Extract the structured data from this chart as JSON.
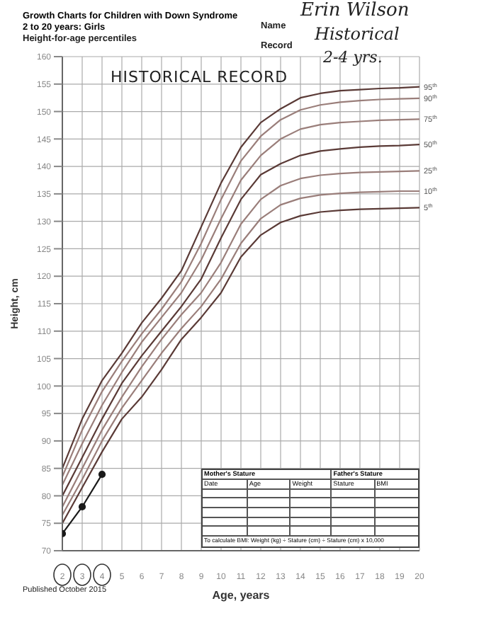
{
  "chart_data": {
    "type": "line",
    "title": "Growth Charts for Children with Down Syndrome",
    "subtitle": "2 to 20 years: Girls",
    "xlabel": "Age, years",
    "ylabel": "Height, cm",
    "annotations": [
      "Height-for-age percentiles",
      "Name",
      "Erin Wilson",
      "Record",
      "Historical",
      "2-4 yrs.",
      "HISTORICAL RECORD",
      "Published October 2015",
      "Mother's Stature",
      "Date",
      "Age",
      "Weight",
      "Father's Stature",
      "Stature",
      "BMI",
      "To calculate BMI: Weight (kg) ÷ Stature (cm) ÷ Stature (cm) x 10,000"
    ],
    "x": [
      2,
      3,
      4,
      5,
      6,
      7,
      8,
      9,
      10,
      11,
      12,
      13,
      14,
      15,
      16,
      17,
      18,
      19,
      20
    ],
    "series": [
      {
        "name": "95$^{th}$",
        "color": "#5a3a36",
        "values": [
          85,
          94,
          101,
          106,
          111.5,
          116,
          121,
          129,
          137,
          143.5,
          148,
          150.5,
          152.5,
          153.3,
          153.8,
          154,
          154.2,
          154.3,
          154.5
        ]
      },
      {
        "name": "90$^{th}$",
        "color": "#9a7e7a",
        "values": [
          83.5,
          92,
          99,
          104.5,
          109.5,
          114,
          119,
          126,
          134,
          141,
          145.5,
          148.5,
          150.3,
          151.2,
          151.7,
          152,
          152.2,
          152.3,
          152.4
        ]
      },
      {
        "name": "75$^{th}$",
        "color": "#9a7e7a",
        "values": [
          82,
          89.5,
          96.5,
          102.5,
          108,
          112.5,
          117,
          123,
          130.5,
          137.5,
          142,
          145,
          146.8,
          147.6,
          148,
          148.2,
          148.4,
          148.5,
          148.6
        ]
      },
      {
        "name": "50$^{th}$",
        "color": "#5a3a36",
        "values": [
          80,
          87,
          94,
          100.5,
          105.5,
          110,
          114.5,
          119.5,
          127,
          134,
          138.5,
          140.5,
          142,
          142.8,
          143.2,
          143.5,
          143.7,
          143.8,
          144
        ]
      },
      {
        "name": "25$^{th}$",
        "color": "#9a7e7a",
        "values": [
          78,
          85,
          92,
          98,
          103.5,
          108.5,
          113,
          117,
          122.5,
          129.5,
          134,
          136.5,
          137.8,
          138.4,
          138.7,
          138.9,
          139,
          139.1,
          139.2
        ]
      },
      {
        "name": "10$^{th}$",
        "color": "#9a7e7a",
        "values": [
          76.5,
          83,
          90,
          96,
          101,
          106,
          110.5,
          114.5,
          119.5,
          126,
          130.5,
          133,
          134.2,
          134.8,
          135.1,
          135.3,
          135.4,
          135.5,
          135.5
        ]
      },
      {
        "name": "5$^{th}$",
        "color": "#5a3a36",
        "values": [
          75,
          81.5,
          88,
          94,
          98,
          103,
          108.5,
          112.5,
          117,
          123.5,
          127.5,
          129.8,
          131,
          131.7,
          132,
          132.2,
          132.3,
          132.4,
          132.5
        ]
      },
      {
        "type": "line",
        "marker": "circle",
        "color": "#1a1a1a",
        "x": [
          2,
          3,
          4
        ],
        "values": [
          73.1,
          78,
          83.9
        ]
      }
    ],
    "xlim": [
      2,
      20
    ],
    "xticks": [
      2,
      3,
      4,
      5,
      6,
      7,
      8,
      9,
      10,
      11,
      12,
      13,
      14,
      15,
      16,
      17,
      18,
      19,
      20
    ],
    "ylim": [
      70,
      160
    ],
    "yticks": [
      70,
      75,
      80,
      85,
      90,
      95,
      100,
      105,
      110,
      115,
      120,
      125,
      130,
      135,
      140,
      145,
      150,
      155,
      160
    ],
    "grid": true,
    "marker": "none",
    "line_style": "solid"
  }
}
